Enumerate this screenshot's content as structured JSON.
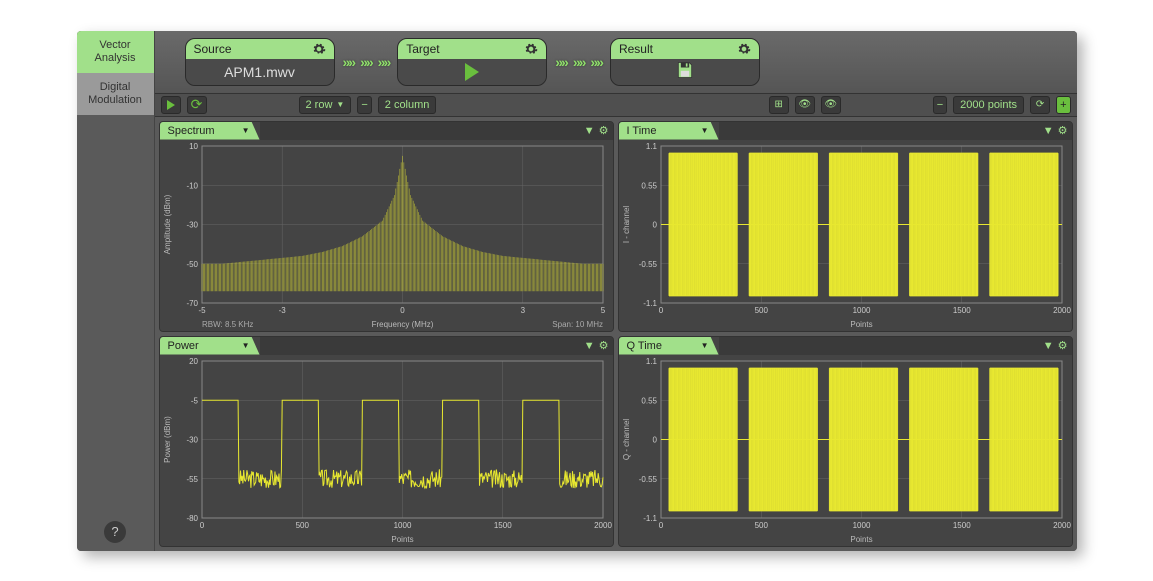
{
  "sidebar": {
    "tab_vector": "Vector\nAnalysis",
    "tab_digital": "Digital\nModulation",
    "help": "?"
  },
  "flow": {
    "source": {
      "title": "Source",
      "value": "APM1.mwv"
    },
    "target": {
      "title": "Target"
    },
    "result": {
      "title": "Result"
    }
  },
  "toolbar": {
    "rows_label": "2 row",
    "cols_label": "2 column",
    "points_label": "2000 points"
  },
  "colors": {
    "accent": "#a1e08a",
    "trace": "#e8e830",
    "grid": "#666666",
    "bg": "#444444",
    "panel_dark": "#3a3a3a"
  },
  "charts": {
    "spectrum": {
      "title": "Spectrum",
      "type": "line",
      "xlabel": "Frequency (MHz)",
      "ylabel": "Amplitude (dBm)",
      "xlim": [
        -5,
        5
      ],
      "ylim": [
        -70,
        10
      ],
      "xticks": [
        -5,
        -3,
        0,
        3,
        5
      ],
      "yticks": [
        -70,
        -50,
        -30,
        -10,
        10
      ],
      "footer_left": "RBW: 8.5 KHz",
      "footer_right": "Span: 10 MHz",
      "trace_color": "#e8e830",
      "series": [
        [
          -5,
          -50
        ],
        [
          -4.5,
          -50
        ],
        [
          -4,
          -49
        ],
        [
          -3.5,
          -48
        ],
        [
          -3,
          -47
        ],
        [
          -2.5,
          -46
        ],
        [
          -2,
          -44
        ],
        [
          -1.5,
          -41
        ],
        [
          -1,
          -36
        ],
        [
          -0.5,
          -28
        ],
        [
          -0.2,
          -15
        ],
        [
          0,
          5
        ],
        [
          0.2,
          -15
        ],
        [
          0.5,
          -28
        ],
        [
          1,
          -36
        ],
        [
          1.5,
          -41
        ],
        [
          2,
          -44
        ],
        [
          2.5,
          -46
        ],
        [
          3,
          -47
        ],
        [
          3.5,
          -48
        ],
        [
          4,
          -49
        ],
        [
          4.5,
          -50
        ],
        [
          5,
          -50
        ]
      ],
      "noise_floor": -58,
      "noise_amp": 6
    },
    "itime": {
      "title": "I Time",
      "type": "burst",
      "xlabel": "Points",
      "ylabel": "I - channel",
      "xlim": [
        0,
        2000
      ],
      "ylim": [
        -1.1,
        1.1
      ],
      "xticks": [
        0,
        500,
        1000,
        1500,
        2000
      ],
      "yticks": [
        -1.1,
        -0.55,
        0,
        0.55,
        1.1
      ],
      "trace_color": "#e8e830",
      "bursts": [
        [
          40,
          380
        ],
        [
          440,
          780
        ],
        [
          840,
          1180
        ],
        [
          1240,
          1580
        ],
        [
          1640,
          1980
        ]
      ],
      "burst_high": 1.0,
      "burst_low": -1.0,
      "idle": 0
    },
    "power": {
      "title": "Power",
      "type": "pulse-noise",
      "xlabel": "Points",
      "ylabel": "Power (dBm)",
      "xlim": [
        0,
        2000
      ],
      "ylim": [
        -80,
        20
      ],
      "xticks": [
        0,
        500,
        1000,
        1500,
        2000
      ],
      "yticks": [
        -80,
        -55,
        -30,
        -5,
        20
      ],
      "trace_color": "#e8e830",
      "pulses": [
        [
          0,
          180
        ],
        [
          400,
          580
        ],
        [
          800,
          980
        ],
        [
          1200,
          1380
        ],
        [
          1600,
          1780
        ]
      ],
      "high_level": -5,
      "low_level": -55,
      "noise_amp": 6
    },
    "qtime": {
      "title": "Q Time",
      "type": "burst",
      "xlabel": "Points",
      "ylabel": "Q - channel",
      "xlim": [
        0,
        2000
      ],
      "ylim": [
        -1.1,
        1.1
      ],
      "xticks": [
        0,
        500,
        1000,
        1500,
        2000
      ],
      "yticks": [
        -1.1,
        -0.55,
        0,
        0.55,
        1.1
      ],
      "trace_color": "#e8e830",
      "bursts": [
        [
          40,
          380
        ],
        [
          440,
          780
        ],
        [
          840,
          1180
        ],
        [
          1240,
          1580
        ],
        [
          1640,
          1980
        ]
      ],
      "burst_high": 1.0,
      "burst_low": -1.0,
      "idle": 0
    }
  }
}
